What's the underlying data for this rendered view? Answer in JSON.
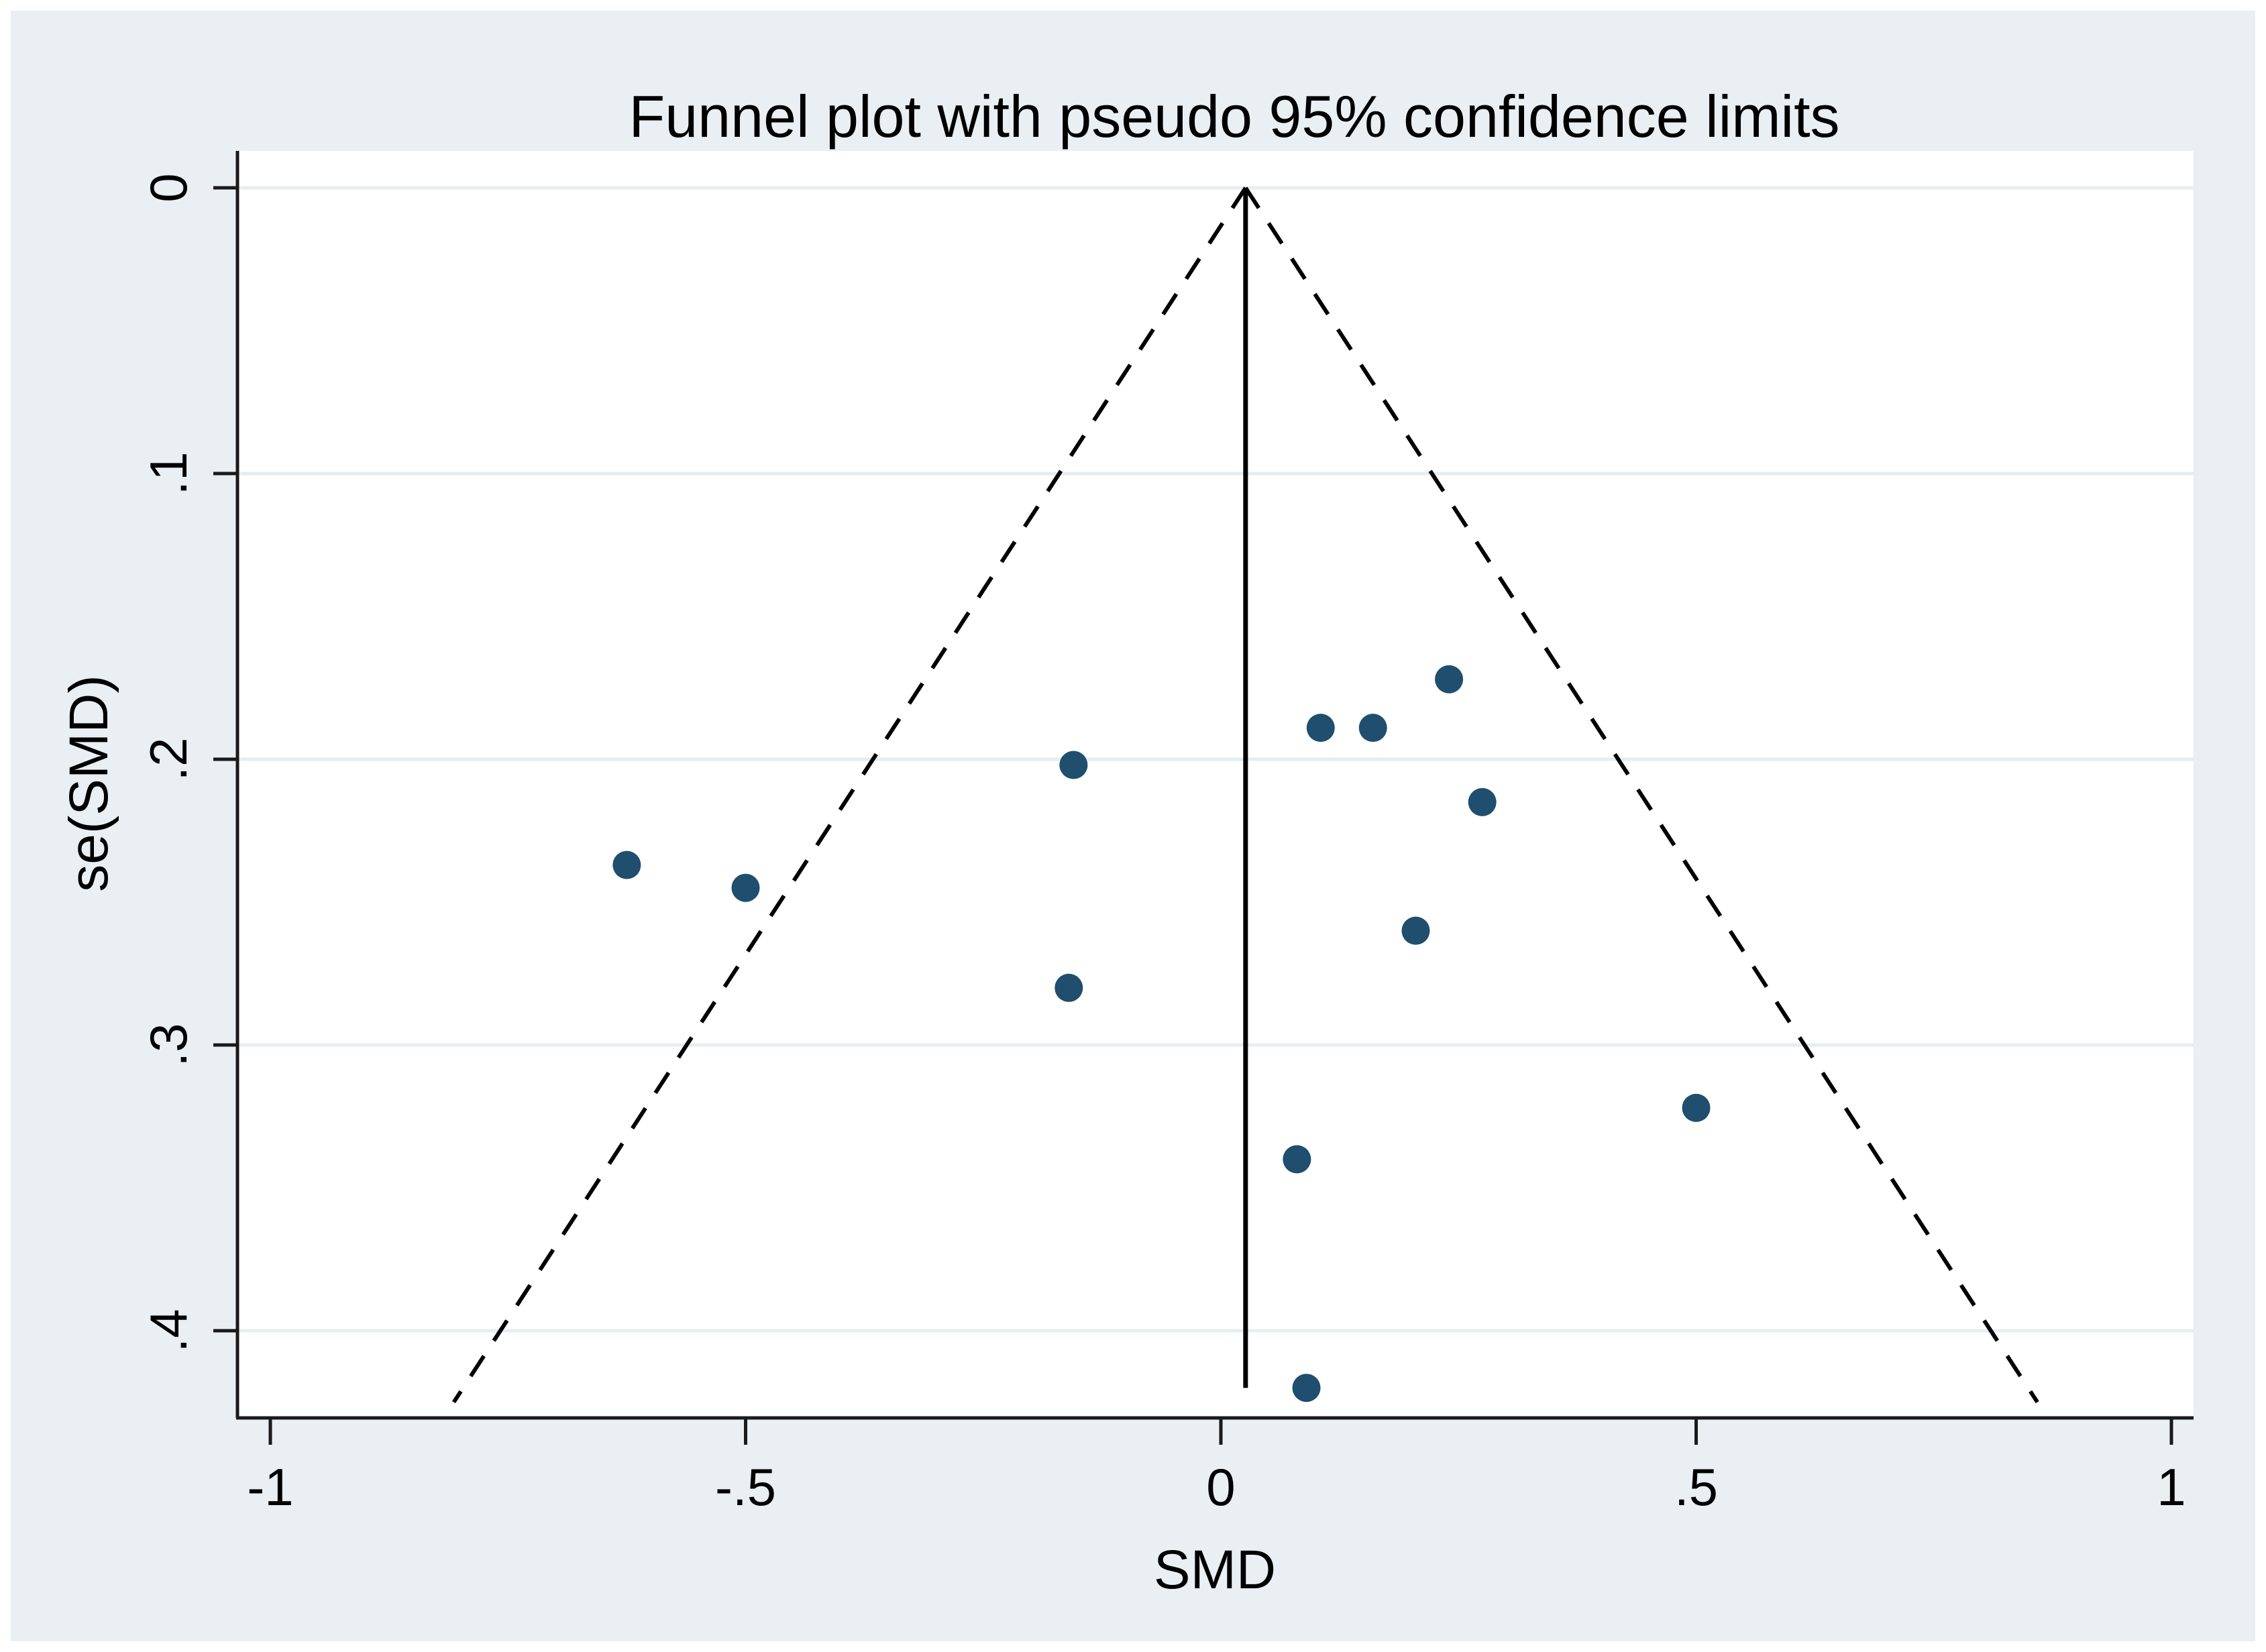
{
  "chart_data": {
    "type": "scatter",
    "subtype": "funnel-plot",
    "title": "Funnel plot with pseudo 95% confidence limits",
    "xlabel": "SMD",
    "ylabel": "se(SMD)",
    "x_ticks": [
      -1,
      -0.5,
      0,
      0.5,
      1
    ],
    "x_tick_labels": [
      "-1",
      "-.5",
      "0",
      ".5",
      "1"
    ],
    "y_ticks": [
      0,
      0.1,
      0.2,
      0.3,
      0.4
    ],
    "y_tick_labels": [
      "0",
      ".1",
      ".2",
      ".3",
      ".4"
    ],
    "xlim": [
      -1.04,
      1.02
    ],
    "ylim": [
      -0.013,
      0.43
    ],
    "y_axis_inverted": true,
    "grid": "horizontal",
    "legend": "none",
    "points": [
      {
        "smd": -0.625,
        "se": 0.237
      },
      {
        "smd": -0.5,
        "se": 0.245
      },
      {
        "smd": -0.155,
        "se": 0.202
      },
      {
        "smd": -0.16,
        "se": 0.28
      },
      {
        "smd": 0.105,
        "se": 0.189
      },
      {
        "smd": 0.16,
        "se": 0.189
      },
      {
        "smd": 0.24,
        "se": 0.172
      },
      {
        "smd": 0.275,
        "se": 0.215
      },
      {
        "smd": 0.205,
        "se": 0.26
      },
      {
        "smd": 0.5,
        "se": 0.322
      },
      {
        "smd": 0.08,
        "se": 0.34
      },
      {
        "smd": 0.09,
        "se": 0.42
      }
    ],
    "pseudo_confidence_funnel": {
      "center_smd": 0.026,
      "z": 1.96,
      "se_max": 0.425,
      "line_style": "dashed"
    },
    "estimate_line": {
      "smd": 0.026,
      "se_from": 0,
      "se_to": 0.42,
      "line_style": "solid"
    },
    "colors": {
      "canvas_background": "#e9eff3",
      "plot_background": "#ffffff",
      "marker": "#1f4e6e",
      "axis": "#1a1a1a",
      "gridline": "#e4edf2",
      "funnel_line": "#000000",
      "estimate_line": "#000000",
      "text": "#000000"
    }
  }
}
